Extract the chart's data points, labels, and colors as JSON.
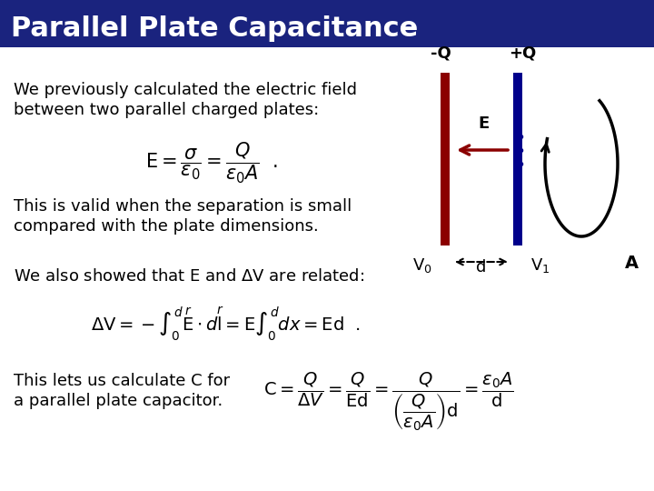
{
  "title": "Parallel Plate Capacitance",
  "title_bg": "#1a237e",
  "title_color": "#ffffff",
  "bg_color": "#ffffff",
  "text_color": "#000000",
  "plate_left_color": "#8b0000",
  "plate_right_color": "#00008b",
  "arrow_color": "#8b0000",
  "label_neg_q": "-Q",
  "label_pos_q": "+Q",
  "label_e": "E",
  "label_v0": "V$_0$",
  "label_v1": "V$_1$",
  "label_d": "d",
  "label_a": "A"
}
